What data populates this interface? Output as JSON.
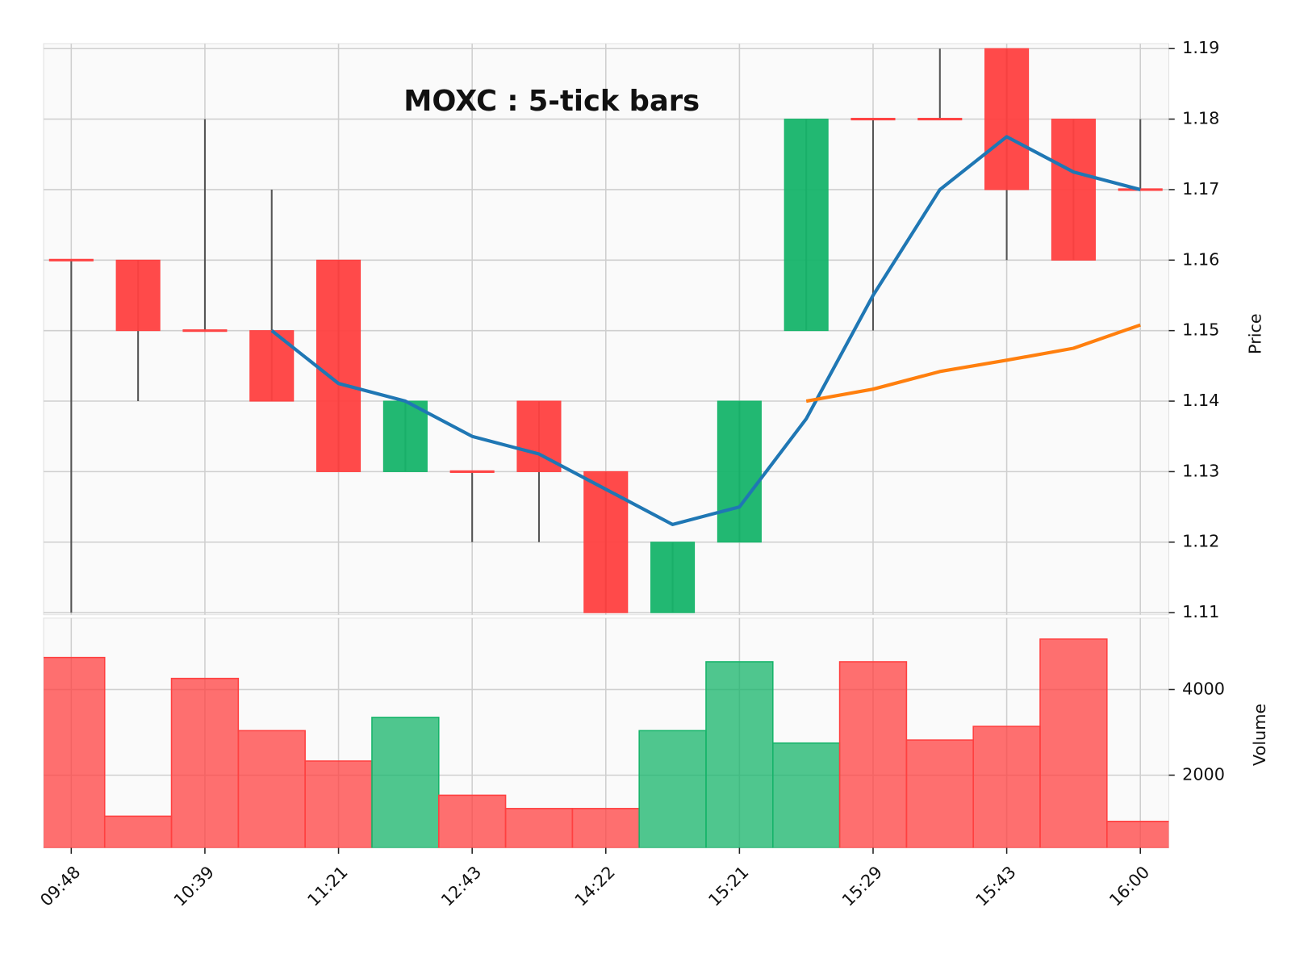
{
  "chart_data": {
    "type": "candlestick",
    "title": "MOXC : 5-tick bars",
    "categories": [
      "09:48",
      null,
      "10:39",
      null,
      "11:21",
      null,
      "12:43",
      null,
      "14:22",
      null,
      "15:21",
      null,
      "15:29",
      null,
      "15:43",
      null,
      "16:00"
    ],
    "open": [
      1.16,
      1.16,
      1.15,
      1.15,
      1.16,
      1.13,
      1.13,
      1.14,
      1.13,
      1.11,
      1.12,
      1.15,
      1.18,
      1.18,
      1.19,
      1.18,
      1.17
    ],
    "high": [
      1.16,
      1.16,
      1.18,
      1.17,
      1.16,
      1.14,
      1.13,
      1.14,
      1.13,
      1.12,
      1.14,
      1.18,
      1.18,
      1.19,
      1.19,
      1.18,
      1.18
    ],
    "low": [
      1.11,
      1.14,
      1.15,
      1.14,
      1.13,
      1.13,
      1.12,
      1.12,
      1.11,
      1.11,
      1.12,
      1.15,
      1.15,
      1.18,
      1.16,
      1.16,
      1.17
    ],
    "close": [
      1.16,
      1.15,
      1.15,
      1.14,
      1.13,
      1.14,
      1.13,
      1.13,
      1.11,
      1.12,
      1.14,
      1.18,
      1.18,
      1.18,
      1.17,
      1.16,
      1.17
    ],
    "up_color": "#16b46a",
    "down_color": "#ff4040",
    "wick_color": "#555555",
    "ylabel": "Price",
    "ylim": [
      1.1097,
      1.1907
    ],
    "yticks": [
      1.11,
      1.12,
      1.13,
      1.14,
      1.15,
      1.16,
      1.17,
      1.18,
      1.19
    ],
    "grid": true,
    "moving_averages": [
      {
        "color": "#1f77b4",
        "values": [
          null,
          null,
          null,
          1.15,
          1.1425,
          1.14,
          1.135,
          1.1325,
          1.1275,
          1.1225,
          1.125,
          1.1375,
          1.155,
          1.17,
          1.1775,
          1.1725,
          1.17
        ]
      },
      {
        "color": "#ff7f0e",
        "values": [
          null,
          null,
          null,
          null,
          null,
          null,
          null,
          null,
          null,
          null,
          null,
          1.14,
          1.1417,
          1.1442,
          1.1458,
          1.1475,
          1.1508
        ]
      }
    ],
    "volume": {
      "ylabel": "Volume",
      "values": [
        4750,
        1040,
        4260,
        3040,
        2330,
        3350,
        1530,
        1220,
        1220,
        3040,
        4650,
        2750,
        4650,
        2820,
        3140,
        5180,
        920
      ],
      "ylim": [
        300,
        5670
      ],
      "yticks": [
        2000,
        4000
      ]
    }
  }
}
